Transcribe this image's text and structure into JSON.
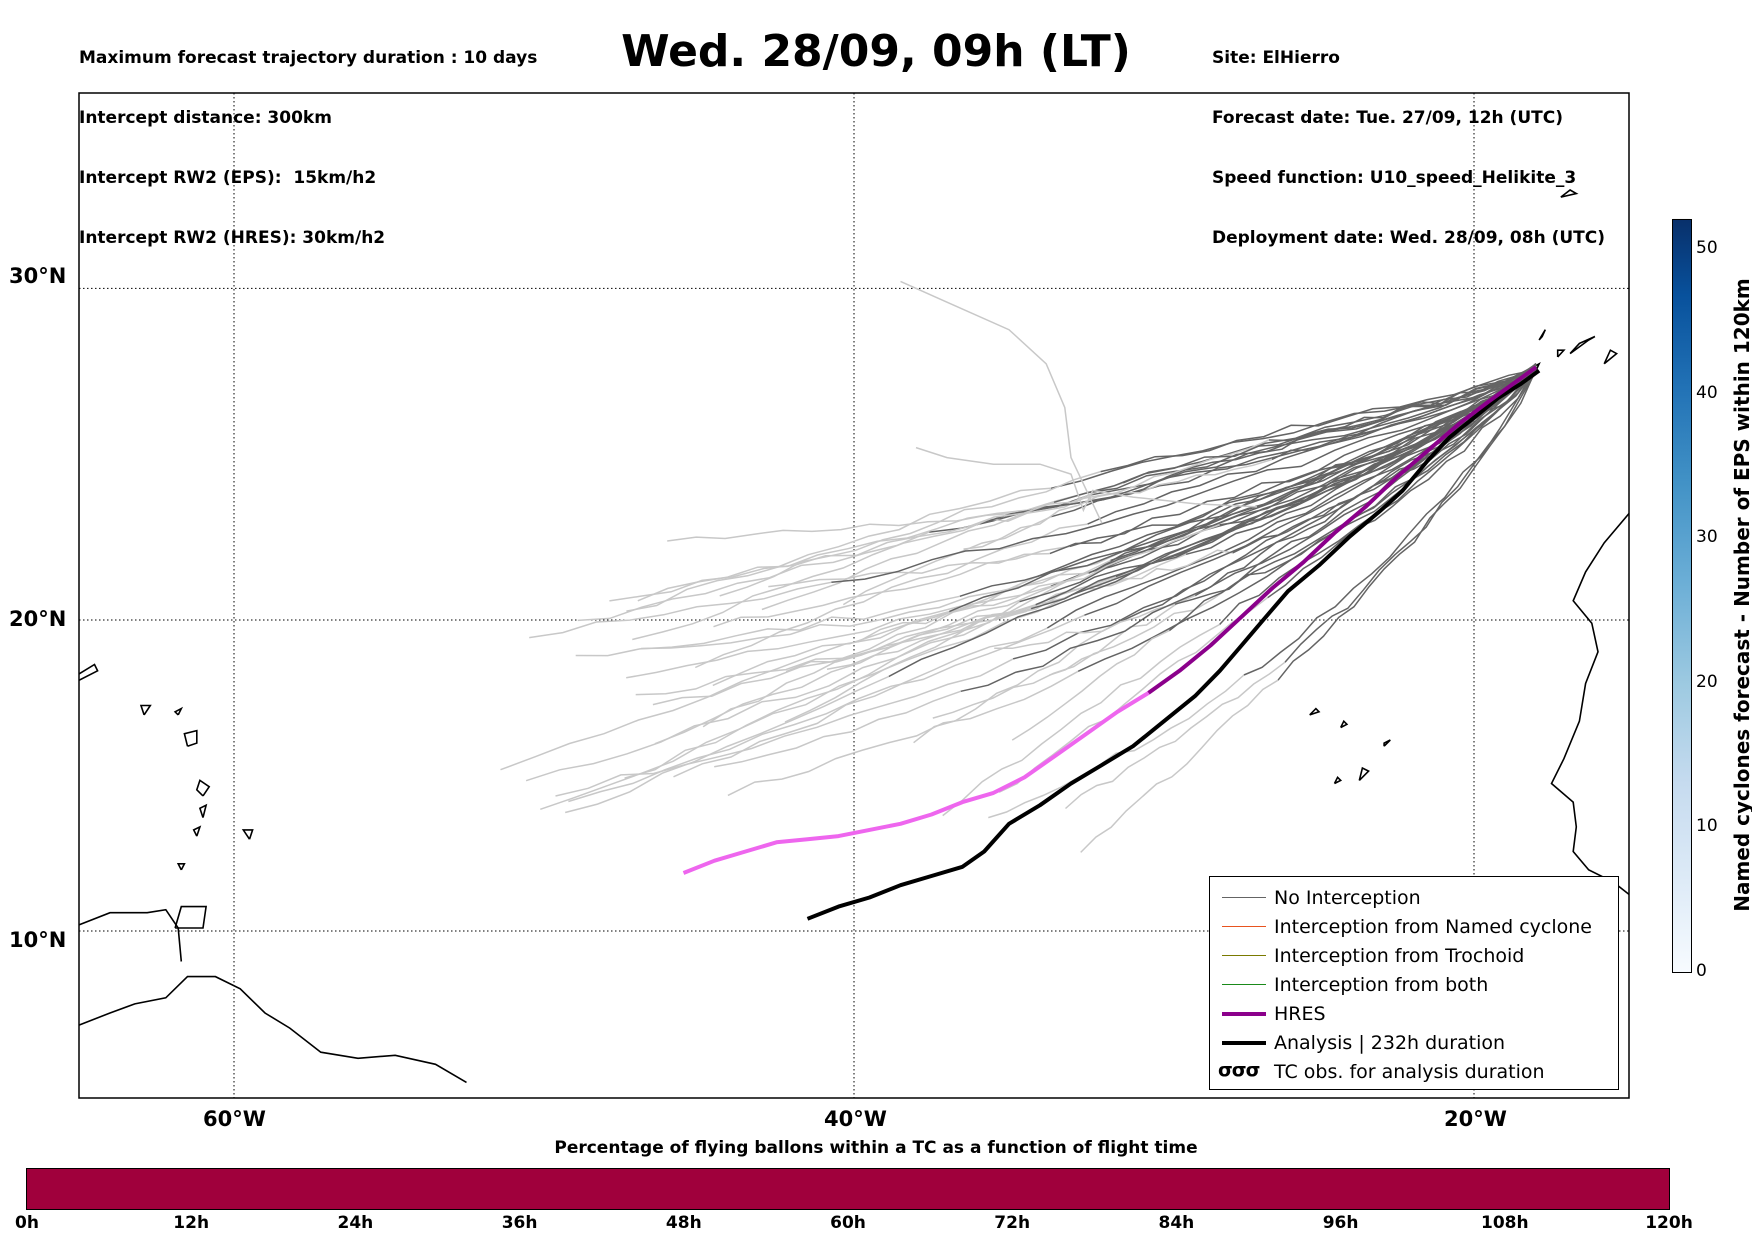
{
  "header": {
    "left_lines": [
      "Maximum forecast trajectory duration : 10 days",
      "Intercept distance: 300km",
      "Intercept RW2 (EPS):  15km/h2",
      "Intercept RW2 (HRES): 30km/h2"
    ],
    "right_lines": [
      "Site: ElHierro",
      "Forecast date: Tue. 27/09, 12h (UTC)",
      "Speed function: U10_speed_Helikite_3",
      "Deployment date: Wed. 28/09, 08h (UTC)"
    ],
    "title": "Wed. 28/09, 09h (LT)"
  },
  "map": {
    "lon_range": [
      -65,
      -15
    ],
    "lat_range": [
      5.3,
      34.6
    ],
    "lon_ticks": [
      {
        "value": -60,
        "label": "60°W"
      },
      {
        "value": -40,
        "label": "40°W"
      },
      {
        "value": -20,
        "label": "20°W"
      }
    ],
    "lat_ticks": [
      {
        "value": 30,
        "label": "30°N"
      },
      {
        "value": 20,
        "label": "20°N"
      },
      {
        "value": 10,
        "label": "10°N"
      }
    ],
    "colors": {
      "no_interception": "#646464",
      "eps_after": "#c8c8c8",
      "hres": "#8b008b",
      "hres_after": "#ee66ee",
      "analysis": "#000000",
      "coast": "#000000"
    },
    "site": {
      "lon": -18.0,
      "lat": 27.7
    },
    "hres_track": [
      [
        -18.0,
        27.7
      ],
      [
        -18.6,
        27.3
      ],
      [
        -19.5,
        26.7
      ],
      [
        -20.5,
        26.0
      ],
      [
        -21.5,
        25.2
      ],
      [
        -22.5,
        24.4
      ],
      [
        -23.5,
        23.5
      ],
      [
        -24.5,
        22.7
      ],
      [
        -25.5,
        21.8
      ],
      [
        -26.5,
        21.0
      ],
      [
        -27.5,
        20.1
      ],
      [
        -28.5,
        19.2
      ],
      [
        -29.5,
        18.4
      ],
      [
        -30.5,
        17.7
      ]
    ],
    "hres_after_track": [
      [
        -30.5,
        17.7
      ],
      [
        -31.5,
        17.1
      ],
      [
        -32.5,
        16.4
      ],
      [
        -33.5,
        15.7
      ],
      [
        -34.5,
        15.0
      ],
      [
        -35.5,
        14.5
      ],
      [
        -36.5,
        14.2
      ],
      [
        -37.5,
        13.8
      ],
      [
        -38.5,
        13.5
      ],
      [
        -39.5,
        13.3
      ],
      [
        -40.5,
        13.1
      ],
      [
        -41.5,
        13.0
      ],
      [
        -42.5,
        12.9
      ],
      [
        -43.5,
        12.6
      ],
      [
        -44.5,
        12.3
      ],
      [
        -45.5,
        11.9
      ]
    ],
    "analysis_track": [
      [
        -17.9,
        27.6
      ],
      [
        -18.5,
        27.2
      ],
      [
        -19.2,
        26.8
      ],
      [
        -20.0,
        26.2
      ],
      [
        -20.8,
        25.6
      ],
      [
        -21.5,
        24.9
      ],
      [
        -22.3,
        24.0
      ],
      [
        -23.0,
        23.4
      ],
      [
        -24.0,
        22.6
      ],
      [
        -25.0,
        21.7
      ],
      [
        -26.0,
        20.9
      ],
      [
        -26.8,
        20.0
      ],
      [
        -27.5,
        19.2
      ],
      [
        -28.2,
        18.4
      ],
      [
        -29.0,
        17.6
      ],
      [
        -30.0,
        16.8
      ],
      [
        -31.0,
        16.0
      ],
      [
        -32.0,
        15.4
      ],
      [
        -33.0,
        14.8
      ],
      [
        -34.0,
        14.1
      ],
      [
        -35.0,
        13.5
      ],
      [
        -35.8,
        12.6
      ],
      [
        -36.5,
        12.1
      ],
      [
        -37.5,
        11.8
      ],
      [
        -38.5,
        11.5
      ],
      [
        -39.5,
        11.1
      ],
      [
        -40.5,
        10.8
      ],
      [
        -41.5,
        10.4
      ]
    ]
  },
  "legend": {
    "items": [
      {
        "label": "No Interception",
        "color": "#646464",
        "width": 1.5
      },
      {
        "label": "Interception from Named cyclone",
        "color": "#e8531f",
        "width": 1.5
      },
      {
        "label": "Interception from Trochoid",
        "color": "#7a7a00",
        "width": 1.5
      },
      {
        "label": "Interception from both",
        "color": "#1a8a1a",
        "width": 1.5
      },
      {
        "label": "HRES",
        "color": "#8b008b",
        "width": 4
      },
      {
        "label": "Analysis | 232h duration",
        "color": "#000000",
        "width": 4
      }
    ],
    "tc_symbol": "σσσ",
    "tc_label": "TC obs. for analysis duration"
  },
  "colorbar": {
    "label": "Named cyclones forecast - Number of EPS within 120km",
    "min": 0,
    "max": 52,
    "ticks": [
      "0",
      "10",
      "20",
      "30",
      "40",
      "50"
    ]
  },
  "time_bar": {
    "title": "Percentage of flying ballons within a TC as a function of flight time",
    "color": "#a0003c",
    "ticks": [
      "0h",
      "12h",
      "24h",
      "36h",
      "48h",
      "60h",
      "72h",
      "84h",
      "96h",
      "108h",
      "120h"
    ]
  }
}
